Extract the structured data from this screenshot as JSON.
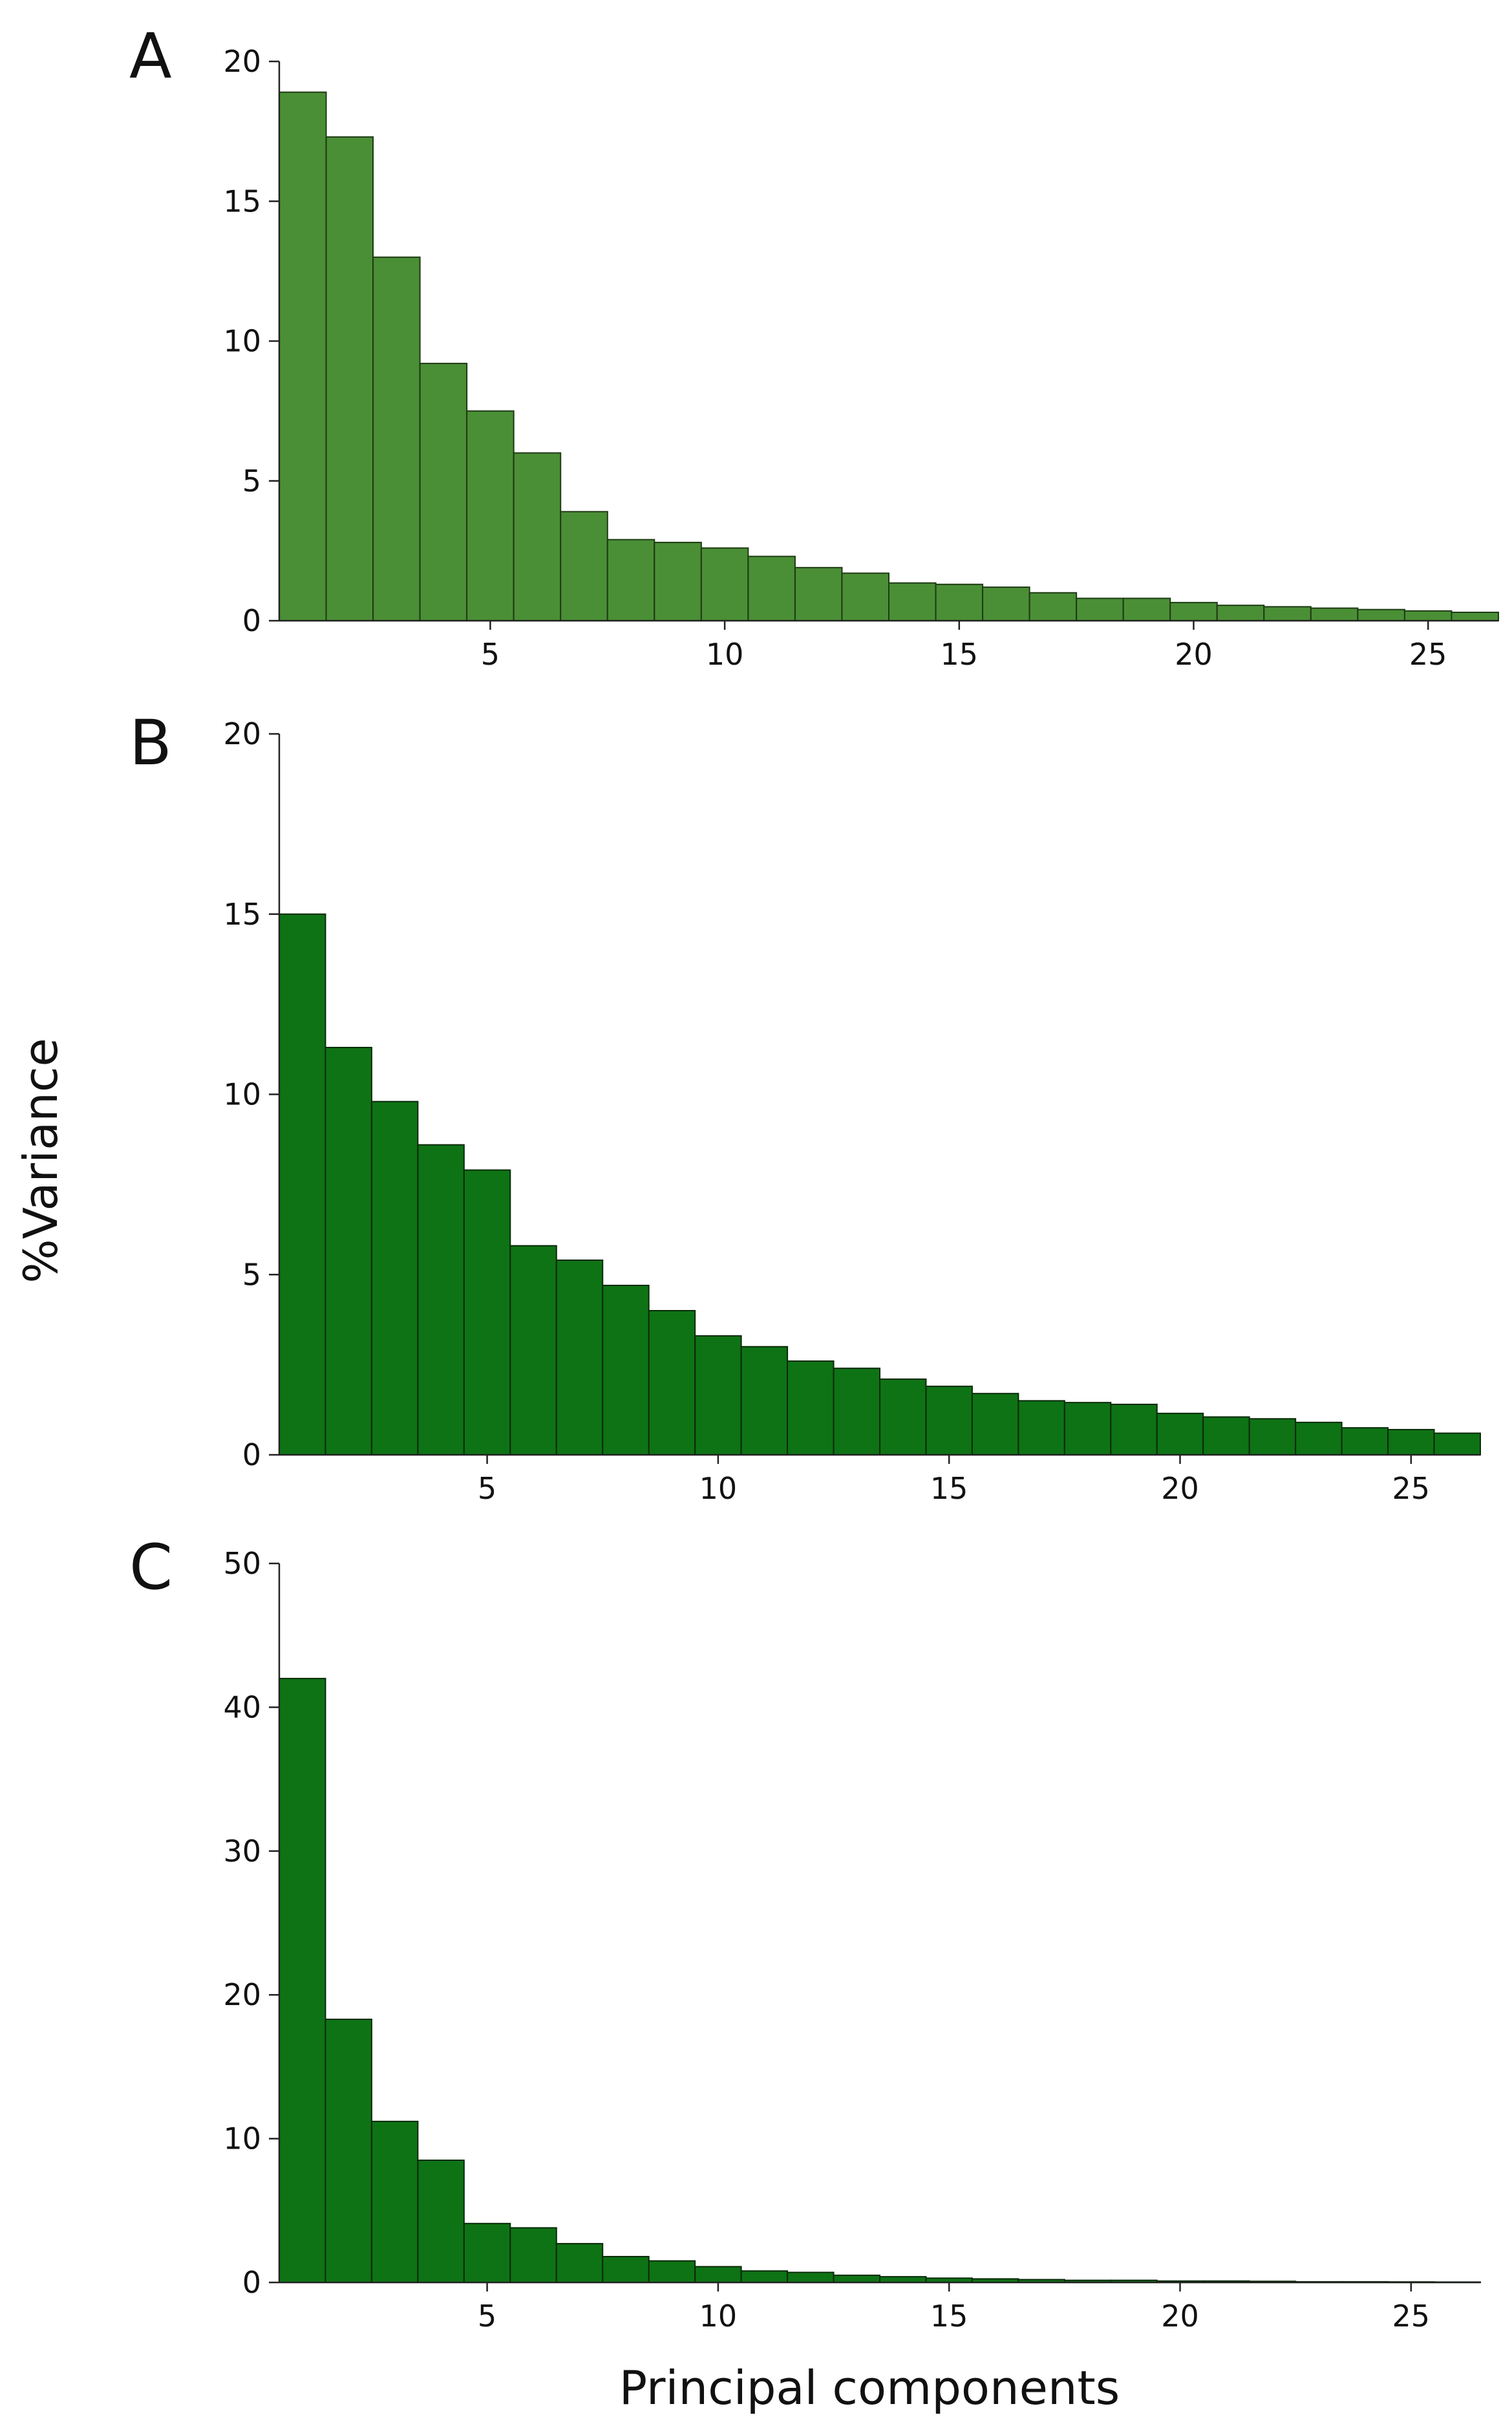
{
  "figure": {
    "ylabel": "%Variance",
    "xlabel": "Principal components"
  },
  "chart_data": [
    {
      "type": "bar",
      "panel": "A",
      "color": "#4a8f35",
      "edge_color": "#1e3a14",
      "title": "",
      "xlabel": "Principal components",
      "ylabel": "%Variance",
      "x": [
        1,
        2,
        3,
        4,
        5,
        6,
        7,
        8,
        9,
        10,
        11,
        12,
        13,
        14,
        15,
        16,
        17,
        18,
        19,
        20,
        21,
        22,
        23,
        24,
        25,
        26
      ],
      "values": [
        18.9,
        17.3,
        13.0,
        9.2,
        7.5,
        6.0,
        3.9,
        2.9,
        2.8,
        2.6,
        2.3,
        1.9,
        1.7,
        1.35,
        1.3,
        1.2,
        1.0,
        0.8,
        0.8,
        0.65,
        0.55,
        0.5,
        0.45,
        0.4,
        0.35,
        0.3
      ],
      "ylim": [
        0,
        20
      ],
      "xlim": [
        0.5,
        26.5
      ],
      "yticks": [
        0,
        5,
        10,
        15,
        20
      ],
      "xticks": [
        5,
        10,
        15,
        20,
        25
      ]
    },
    {
      "type": "bar",
      "panel": "B",
      "color": "#0e7314",
      "edge_color": "#0a2a0a",
      "title": "",
      "xlabel": "Principal components",
      "ylabel": "%Variance",
      "x": [
        1,
        2,
        3,
        4,
        5,
        6,
        7,
        8,
        9,
        10,
        11,
        12,
        13,
        14,
        15,
        16,
        17,
        18,
        19,
        20,
        21,
        22,
        23,
        24,
        25,
        26
      ],
      "values": [
        15.0,
        11.3,
        9.8,
        8.6,
        7.9,
        5.8,
        5.4,
        4.7,
        4.0,
        3.3,
        3.0,
        2.6,
        2.4,
        2.1,
        1.9,
        1.7,
        1.5,
        1.45,
        1.4,
        1.15,
        1.05,
        1.0,
        0.9,
        0.75,
        0.7,
        0.6
      ],
      "ylim": [
        0,
        20
      ],
      "xlim": [
        0.5,
        26.5
      ],
      "yticks": [
        0,
        5,
        10,
        15,
        20
      ],
      "xticks": [
        5,
        10,
        15,
        20,
        25
      ]
    },
    {
      "type": "bar",
      "panel": "C",
      "color": "#0e7314",
      "edge_color": "#0a2a0a",
      "title": "",
      "xlabel": "Principal components",
      "ylabel": "%Variance",
      "x": [
        1,
        2,
        3,
        4,
        5,
        6,
        7,
        8,
        9,
        10,
        11,
        12,
        13,
        14,
        15,
        16,
        17,
        18,
        19,
        20,
        21,
        22,
        23,
        24,
        25,
        26
      ],
      "values": [
        42.0,
        18.3,
        11.2,
        8.5,
        4.1,
        3.8,
        2.7,
        1.8,
        1.5,
        1.1,
        0.8,
        0.7,
        0.5,
        0.4,
        0.3,
        0.25,
        0.2,
        0.15,
        0.15,
        0.1,
        0.1,
        0.08,
        0.05,
        0.05,
        0.04,
        0.03
      ],
      "ylim": [
        0,
        50
      ],
      "xlim": [
        0.5,
        26.5
      ],
      "yticks": [
        0,
        10,
        20,
        30,
        40,
        50
      ],
      "xticks": [
        5,
        10,
        15,
        20,
        25
      ]
    }
  ]
}
